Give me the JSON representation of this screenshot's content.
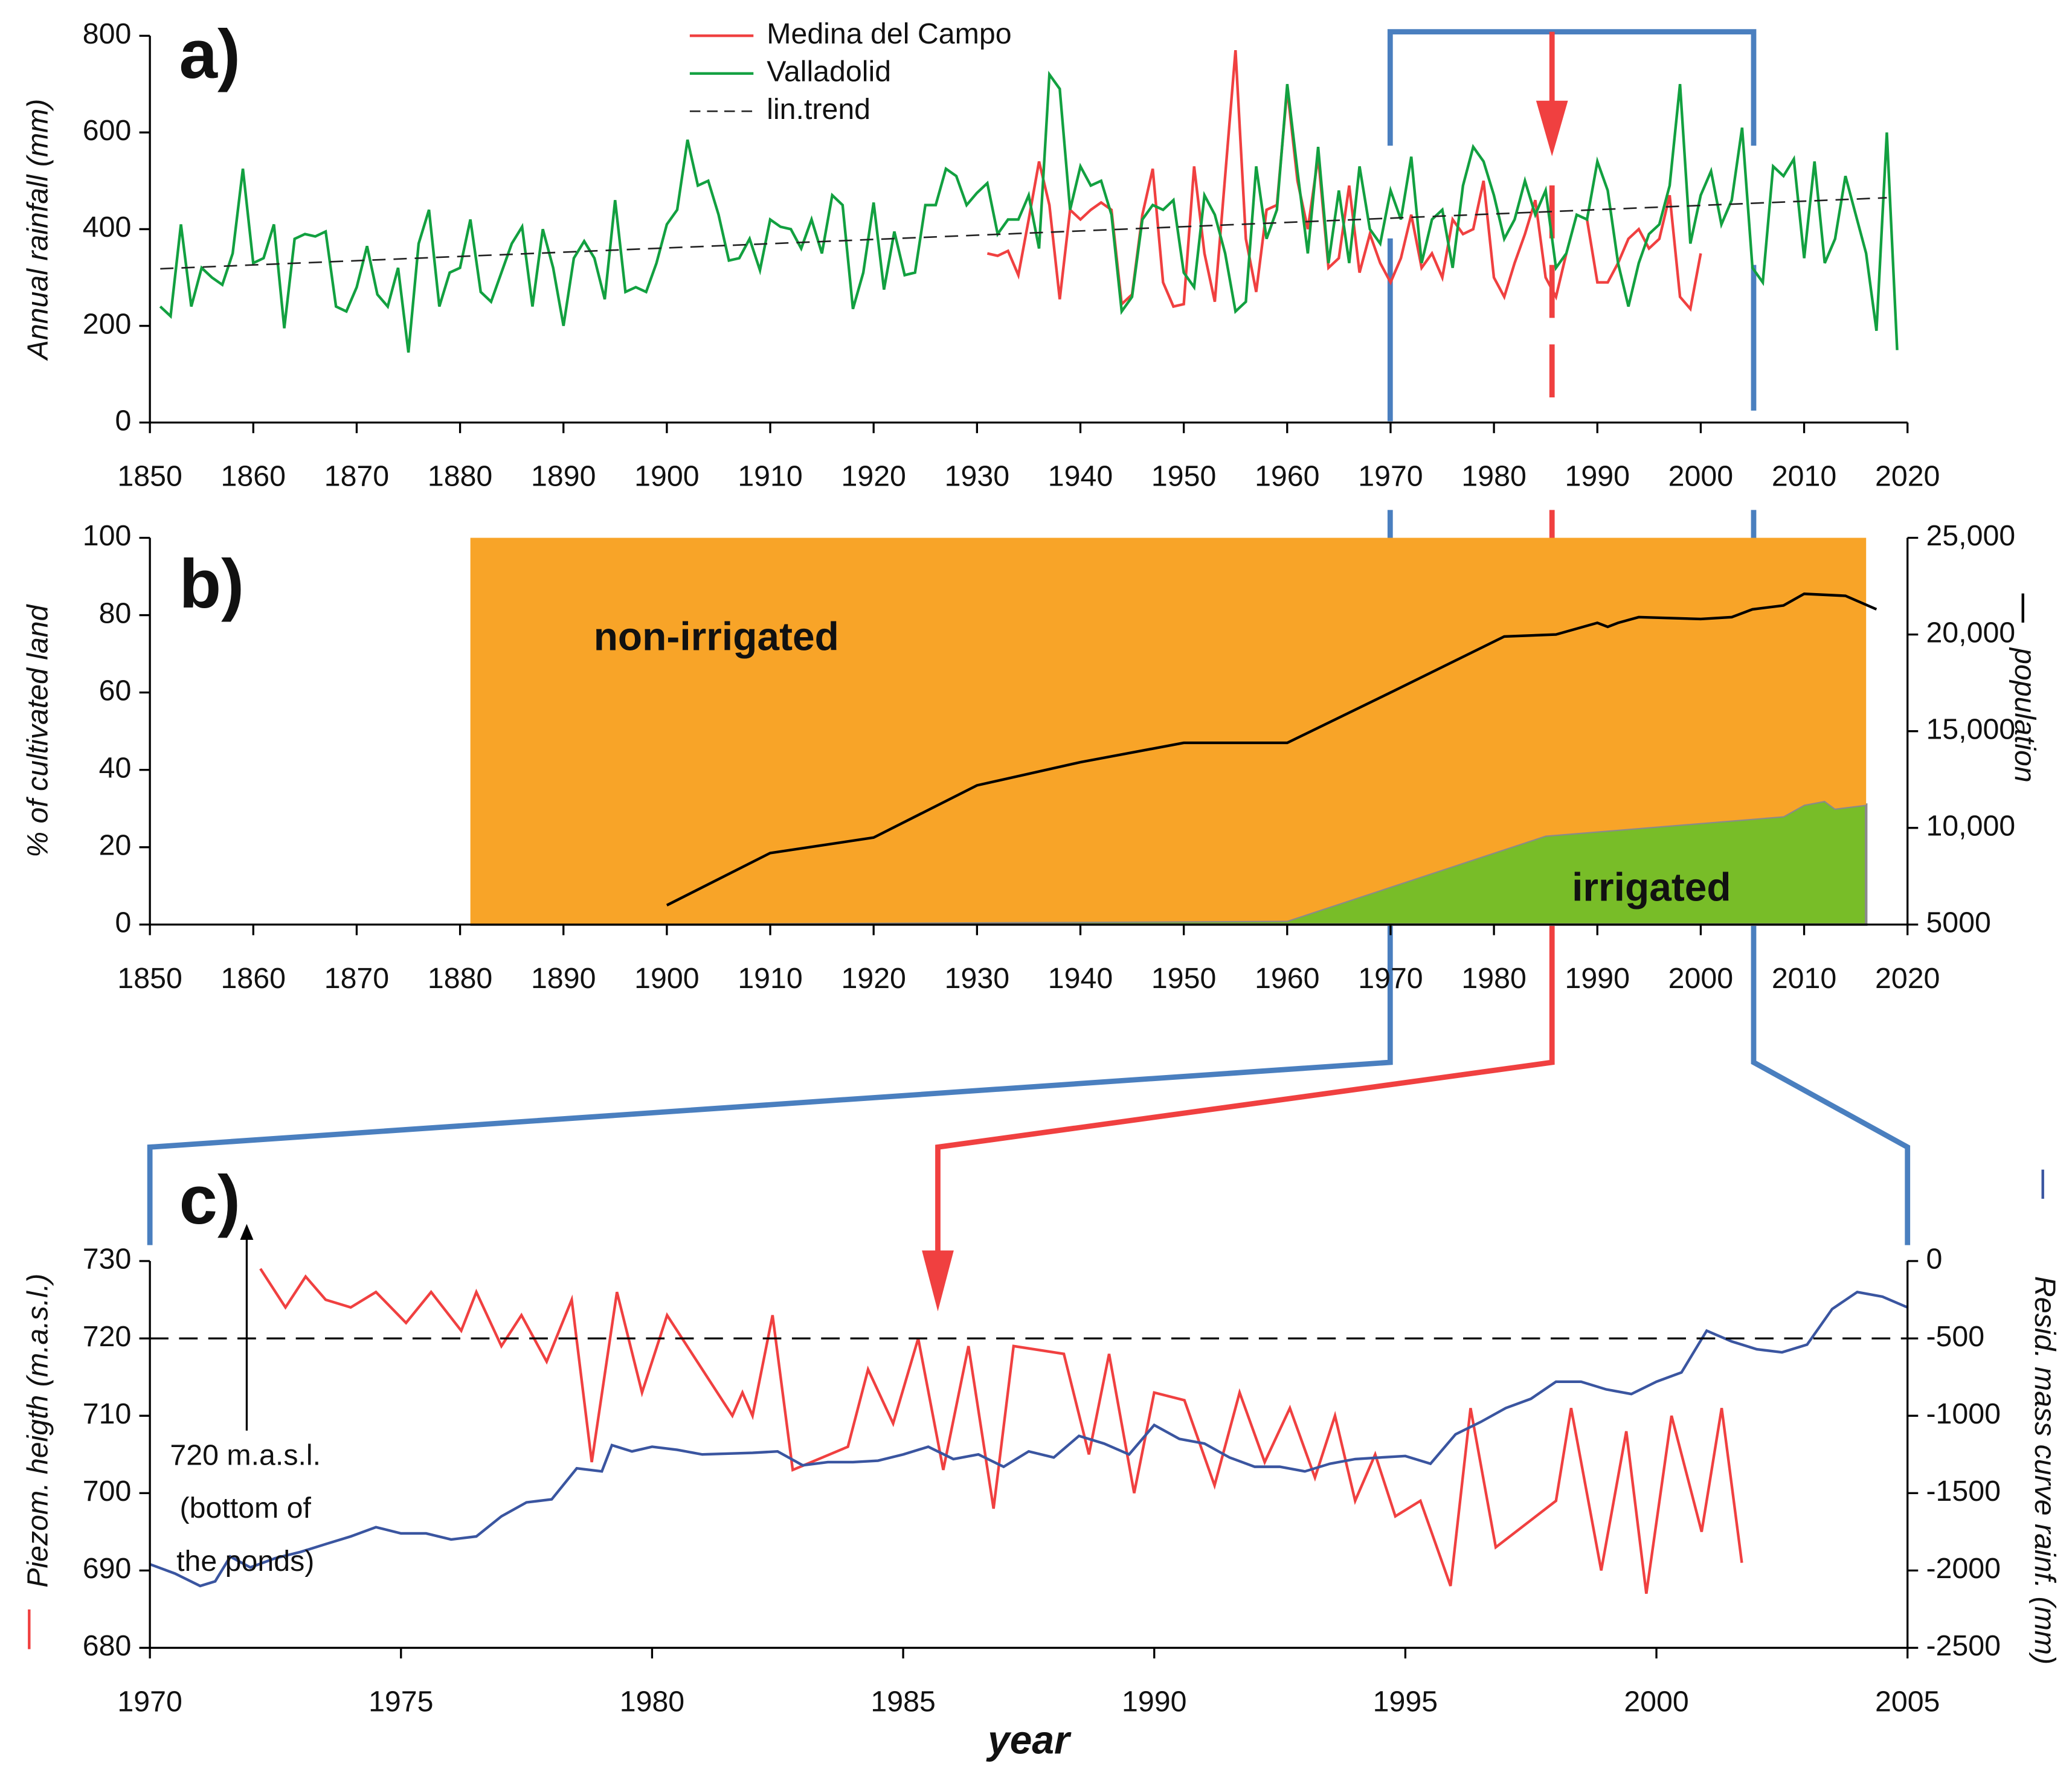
{
  "chart_data": [
    {
      "type": "line",
      "label": "a)",
      "ylabel": "Annual rainfall (mm)",
      "xlim": [
        1850,
        2020
      ],
      "xticks": [
        1850,
        1860,
        1870,
        1880,
        1890,
        1900,
        1910,
        1920,
        1930,
        1940,
        1950,
        1960,
        1970,
        1980,
        1990,
        2000,
        2010,
        2020
      ],
      "ylim": [
        0,
        800
      ],
      "yticks": [
        0,
        200,
        400,
        600,
        800
      ],
      "series": [
        {
          "name": "Medina del Campo",
          "color": "#f04040",
          "x": [
            1931,
            1932,
            1933,
            1934,
            1935,
            1936,
            1937,
            1938,
            1939,
            1940,
            1941,
            1942,
            1943,
            1944,
            1945,
            1946,
            1947,
            1948,
            1949,
            1950,
            1951,
            1952,
            1953,
            1954,
            1955,
            1956,
            1957,
            1958,
            1959,
            1960,
            1961,
            1962,
            1963,
            1964,
            1965,
            1966,
            1967,
            1968,
            1969,
            1970,
            1971,
            1972,
            1973,
            1974,
            1975,
            1976,
            1977,
            1978,
            1979,
            1980,
            1981,
            1982,
            1983,
            1984,
            1985,
            1986,
            1987,
            1988,
            1989,
            1990,
            1991,
            1992,
            1993,
            1994,
            1995,
            1996,
            1997,
            1998,
            1999,
            2000
          ],
          "values": [
            350,
            345,
            355,
            305,
            420,
            540,
            450,
            255,
            440,
            420,
            440,
            455,
            440,
            245,
            265,
            430,
            525,
            290,
            240,
            245,
            530,
            350,
            250,
            510,
            770,
            380,
            270,
            440,
            450,
            690,
            500,
            400,
            550,
            320,
            340,
            490,
            310,
            390,
            330,
            290,
            340,
            430,
            320,
            350,
            300,
            420,
            390,
            400,
            500,
            300,
            260,
            330,
            390,
            460,
            300,
            260,
            350,
            null,
            420,
            290,
            290,
            330,
            380,
            400,
            360,
            380,
            470,
            260,
            235,
            350
          ]
        },
        {
          "name": "Valladolid",
          "color": "#12a040",
          "x": [
            1851,
            1852,
            1853,
            1854,
            1855,
            1856,
            1857,
            1858,
            1859,
            1860,
            1861,
            1862,
            1863,
            1864,
            1865,
            1866,
            1867,
            1868,
            1869,
            1870,
            1871,
            1872,
            1873,
            1874,
            1875,
            1876,
            1877,
            1878,
            1879,
            1880,
            1881,
            1882,
            1883,
            1884,
            1885,
            1886,
            1887,
            1888,
            1889,
            1890,
            1891,
            1892,
            1893,
            1894,
            1895,
            1896,
            1897,
            1898,
            1899,
            1900,
            1901,
            1902,
            1903,
            1904,
            1905,
            1906,
            1907,
            1908,
            1909,
            1910,
            1911,
            1912,
            1913,
            1914,
            1915,
            1916,
            1917,
            1918,
            1919,
            1920,
            1921,
            1922,
            1923,
            1924,
            1925,
            1926,
            1927,
            1928,
            1929,
            1930,
            1931,
            1932,
            1933,
            1934,
            1935,
            1936,
            1937,
            1938,
            1939,
            1940,
            1941,
            1942,
            1943,
            1944,
            1945,
            1946,
            1947,
            1948,
            1949,
            1950,
            1951,
            1952,
            1953,
            1954,
            1955,
            1956,
            1957,
            1958,
            1959,
            1960,
            1961,
            1962,
            1963,
            1964,
            1965,
            1966,
            1967,
            1968,
            1969,
            1970,
            1971,
            1972,
            1973,
            1974,
            1975,
            1976,
            1977,
            1978,
            1979,
            1980,
            1981,
            1982,
            1983,
            1984,
            1985,
            1986,
            1987,
            1988,
            1989,
            1990,
            1991,
            1992,
            1993,
            1994,
            1995,
            1996,
            1997,
            1998,
            1999,
            2000,
            2001,
            2002,
            2003,
            2004,
            2005,
            2006,
            2007,
            2008,
            2009,
            2010,
            2011,
            2012,
            2013,
            2014,
            2015,
            2016,
            2017,
            2018,
            2019
          ],
          "values": [
            240,
            220,
            410,
            240,
            320,
            300,
            285,
            350,
            525,
            330,
            340,
            410,
            195,
            380,
            390,
            385,
            395,
            240,
            230,
            280,
            365,
            265,
            240,
            320,
            145,
            370,
            440,
            240,
            310,
            320,
            420,
            270,
            250,
            310,
            370,
            405,
            240,
            400,
            320,
            200,
            340,
            375,
            340,
            255,
            460,
            270,
            280,
            270,
            330,
            410,
            440,
            585,
            490,
            500,
            430,
            335,
            340,
            380,
            315,
            420,
            405,
            400,
            360,
            420,
            350,
            470,
            450,
            235,
            310,
            455,
            275,
            395,
            305,
            310,
            450,
            450,
            525,
            510,
            450,
            475,
            495,
            390,
            420,
            420,
            470,
            360,
            720,
            690,
            440,
            530,
            490,
            500,
            430,
            230,
            260,
            420,
            450,
            440,
            460,
            310,
            280,
            470,
            430,
            350,
            230,
            250,
            530,
            380,
            440,
            700,
            520,
            350,
            570,
            330,
            480,
            330,
            530,
            400,
            370,
            480,
            420,
            550,
            330,
            420,
            440,
            320,
            490,
            570,
            540,
            470,
            380,
            420,
            500,
            430,
            480,
            320,
            350,
            430,
            420,
            540,
            480,
            330,
            240,
            330,
            390,
            410,
            490,
            700,
            370,
            470,
            520,
            410,
            460,
            610,
            320,
            290,
            530,
            510,
            545,
            340,
            540,
            330,
            380,
            510,
            430,
            350,
            190,
            600,
            150
          ]
        },
        {
          "name": "lin.trend",
          "color": "#222222",
          "dash": true,
          "x": [
            1851,
            2018
          ],
          "values": [
            318,
            465
          ]
        }
      ]
    },
    {
      "type": "area",
      "label": "b)",
      "ylabel": "% of cultivated land",
      "y2label": "population",
      "annotations": [
        "non-irrigated",
        "irrigated"
      ],
      "xlim": [
        1850,
        2020
      ],
      "xticks": [
        1850,
        1860,
        1870,
        1880,
        1890,
        1900,
        1910,
        1920,
        1930,
        1940,
        1950,
        1960,
        1970,
        1980,
        1990,
        2000,
        2010,
        2020
      ],
      "ylim": [
        0,
        100
      ],
      "yticks": [
        0,
        20,
        40,
        60,
        80,
        100
      ],
      "y2lim": [
        5000,
        25000
      ],
      "y2ticks": [
        {
          "value": 25000,
          "label": "25,000"
        },
        {
          "value": 20000,
          "label": "20,000"
        },
        {
          "value": 15000,
          "label": "15,000"
        },
        {
          "value": 10000,
          "label": "10,000"
        },
        5000
      ],
      "series": [
        {
          "name": "irrigated",
          "kind": "area",
          "color": "#78bd28",
          "x": [
            1881,
            1960,
            1985,
            2008,
            2010,
            2012,
            2013,
            2016
          ],
          "values": [
            0,
            1,
            23,
            28,
            31,
            32,
            30,
            31
          ]
        },
        {
          "name": "non-irrigated",
          "kind": "area",
          "color": "#f8a428",
          "x": [
            1881,
            1960,
            1985,
            2008,
            2010,
            2012,
            2013,
            2016
          ],
          "values": [
            100,
            99,
            77,
            72,
            69,
            68,
            70,
            69
          ]
        },
        {
          "name": "population",
          "color": "#000000",
          "axis": "y2",
          "x": [
            1900,
            1910,
            1920,
            1930,
            1940,
            1950,
            1960,
            1970,
            1981,
            1986,
            1990,
            1991,
            1992,
            1994,
            2000,
            2003,
            2005,
            2008,
            2010,
            2014,
            2017
          ],
          "values": [
            6000,
            8700,
            9500,
            12200,
            13400,
            14400,
            14400,
            17000,
            19900,
            20000,
            20600,
            20400,
            20600,
            20900,
            20800,
            20900,
            21300,
            21500,
            22100,
            22000,
            21300
          ]
        }
      ]
    },
    {
      "type": "line",
      "label": "c)",
      "ylabel": "Piezom. heigth (m.a.s.l.)",
      "y2label": "Resid. mass curve rainf. (mm)",
      "xlabel": "year",
      "annotations": [
        "720 m.a.s.l.",
        "(bottom of",
        "the ponds)"
      ],
      "hline": 720,
      "xlim": [
        1970,
        2005
      ],
      "xticks": [
        1970,
        1975,
        1980,
        1985,
        1990,
        1995,
        2000,
        2005
      ],
      "ylim": [
        680,
        730
      ],
      "yticks": [
        680,
        690,
        700,
        710,
        720,
        730
      ],
      "y2lim": [
        -2500,
        0
      ],
      "y2ticks": [
        0,
        -500,
        -1000,
        -1500,
        -2000,
        -2500
      ],
      "series": [
        {
          "color": "#f04040",
          "x": [
            1972.2,
            1972.7,
            1973.1,
            1973.5,
            1974,
            1974.5,
            1975.1,
            1975.6,
            1976.2,
            1976.5,
            1977,
            1977.4,
            1977.9,
            1978.4,
            1978.8,
            1979.3,
            1979.8,
            1980.3,
            1981.6,
            1981.8,
            1982,
            1982.4,
            1982.8,
            1983.9,
            1984.3,
            1984.8,
            1985.3,
            1985.8,
            1986.3,
            1986.8,
            1987.2,
            1988.2,
            1988.7,
            1989.1,
            1989.6,
            1990,
            1990.6,
            1991.2,
            1991.7,
            1992.2,
            1992.7,
            1993.2,
            1993.6,
            1994,
            1994.4,
            1994.8,
            1995.3,
            1995.9,
            1996.3,
            1996.8,
            1998,
            1998.3,
            1998.9,
            1999.4,
            1999.8,
            2000.3,
            2000.9,
            2001.3,
            2001.7
          ],
          "values": [
            729,
            724,
            728,
            725,
            724,
            726,
            722,
            726,
            721,
            726,
            719,
            723,
            717,
            725,
            704,
            726,
            713,
            723,
            710,
            713,
            710,
            723,
            703,
            706,
            716,
            709,
            720,
            703,
            719,
            698,
            719,
            718,
            705,
            718,
            700,
            713,
            712,
            701,
            713,
            704,
            711,
            702,
            710,
            699,
            705,
            697,
            699,
            688,
            711,
            693,
            699,
            711,
            690,
            708,
            687,
            710,
            695,
            711,
            691
          ]
        },
        {
          "color": "#3a55a0",
          "axis": "y2",
          "x": [
            1970,
            1970.5,
            1971,
            1971.3,
            1971.6,
            1972,
            1972.5,
            1973,
            1973.5,
            1974,
            1974.5,
            1975,
            1975.5,
            1976,
            1976.5,
            1977,
            1977.5,
            1978,
            1978.5,
            1979,
            1979.2,
            1979.6,
            1980,
            1980.5,
            1981,
            1982,
            1982.5,
            1983,
            1983.5,
            1984,
            1984.5,
            1985,
            1985.5,
            1986,
            1986.5,
            1987,
            1987.5,
            1988,
            1988.5,
            1989,
            1989.5,
            1990,
            1990.5,
            1991,
            1991.5,
            1992,
            1992.5,
            1993,
            1993.5,
            1994,
            1994.5,
            1995,
            1995.5,
            1996,
            1996.5,
            1997,
            1997.5,
            1998,
            1998.5,
            1999,
            1999.5,
            2000,
            2000.5,
            2001,
            2001.5,
            2002,
            2002.5,
            2003,
            2003.5,
            2004,
            2004.5,
            2005
          ],
          "values": [
            -1960,
            -2020,
            -2100,
            -2070,
            -1910,
            -1980,
            -1920,
            -1880,
            -1830,
            -1780,
            -1720,
            -1760,
            -1760,
            -1800,
            -1780,
            -1650,
            -1560,
            -1540,
            -1340,
            -1360,
            -1190,
            -1230,
            -1200,
            -1220,
            -1250,
            -1240,
            -1230,
            -1320,
            -1300,
            -1300,
            -1290,
            -1250,
            -1200,
            -1280,
            -1250,
            -1330,
            -1230,
            -1270,
            -1130,
            -1180,
            -1250,
            -1060,
            -1150,
            -1180,
            -1270,
            -1330,
            -1330,
            -1360,
            -1310,
            -1280,
            -1270,
            -1260,
            -1310,
            -1120,
            -1040,
            -950,
            -890,
            -780,
            -780,
            -830,
            -860,
            -780,
            -720,
            -450,
            -520,
            -570,
            -590,
            -540,
            -310,
            -200,
            -230,
            -300
          ]
        }
      ]
    }
  ]
}
